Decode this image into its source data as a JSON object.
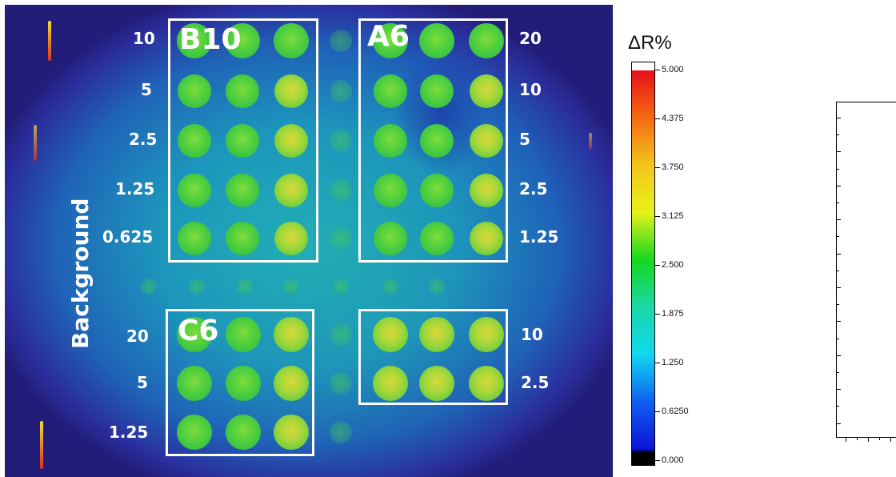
{
  "image": {
    "background_label": "Background",
    "boxes": [
      {
        "name": "B10"
      },
      {
        "name": "A6"
      },
      {
        "name": "C6"
      },
      {
        "name": ""
      }
    ],
    "left_concentrations": [
      "10",
      "5",
      "2.5",
      "1.25",
      "0.625"
    ],
    "right_concentrations": [
      "20",
      "10",
      "5",
      "2.5",
      "1.25"
    ],
    "lower_left_concentrations": [
      "20",
      "5",
      "1.25"
    ],
    "lower_right_concentrations": [
      "10",
      "2.5"
    ]
  },
  "colorbar": {
    "title": "ΔR%",
    "ticks": [
      "5.000",
      "4.375",
      "3.750",
      "3.125",
      "2.500",
      "1.875",
      "1.250",
      "0.6250",
      "0.000"
    ],
    "colors": [
      "#ffffff",
      "#e8101a",
      "#f26a12",
      "#f5c51a",
      "#e6f21a",
      "#15d81e",
      "#1ad8a8",
      "#10d8f0",
      "#1060f0",
      "#0a14d8",
      "#000000"
    ]
  }
}
